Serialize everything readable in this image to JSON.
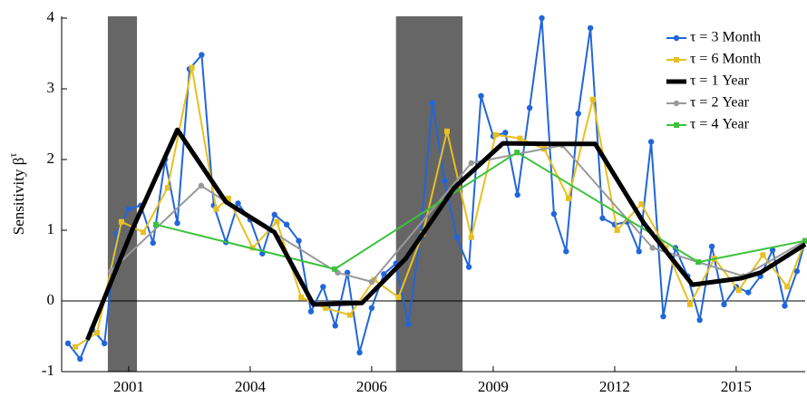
{
  "chart_data": {
    "type": "line",
    "ylabel": "Sensitivity β",
    "ylabel_superscript": "τ",
    "xlim": [
      1999.62,
      2014.92
    ],
    "ylim": [
      -1,
      4
    ],
    "xticks": [
      {
        "value": 2001,
        "label": "2001"
      },
      {
        "value": 2003.5,
        "label": "2004"
      },
      {
        "value": 2006,
        "label": "2006"
      },
      {
        "value": 2008.5,
        "label": "2009"
      },
      {
        "value": 2011,
        "label": "2012"
      },
      {
        "value": 2013.5,
        "label": "2015"
      }
    ],
    "yticks": [
      -1,
      0,
      1,
      2,
      3,
      4
    ],
    "shaded_regions": [
      [
        2000.57,
        2001.17
      ],
      [
        2006.5,
        2007.87
      ]
    ],
    "shade_color": "#666666",
    "zero_line": true,
    "legend": "upper right",
    "series": [
      {
        "name": "τ = 3 Month",
        "color": "#2166d9",
        "marker": "circle",
        "x": [
          1999.75,
          2000,
          2000.25,
          2000.5,
          2000.75,
          2001,
          2001.25,
          2001.5,
          2001.75,
          2002,
          2002.25,
          2002.5,
          2002.75,
          2003,
          2003.25,
          2003.5,
          2003.75,
          2004,
          2004.25,
          2004.5,
          2004.75,
          2005,
          2005.25,
          2005.5,
          2005.75,
          2006,
          2006.25,
          2006.5,
          2006.75,
          2007,
          2007.25,
          2007.5,
          2007.75,
          2008,
          2008.25,
          2008.5,
          2008.75,
          2009,
          2009.25,
          2009.5,
          2009.75,
          2010,
          2010.25,
          2010.5,
          2010.75,
          2011,
          2011.25,
          2011.5,
          2011.75,
          2012,
          2012.25,
          2012.5,
          2012.75,
          2013,
          2013.25,
          2013.5,
          2013.75,
          2014,
          2014.25,
          2014.5,
          2014.75,
          2014.92
        ],
        "values": [
          -0.6,
          -0.82,
          -0.4,
          -0.6,
          0.95,
          1.3,
          1.35,
          0.82,
          2.0,
          1.1,
          3.28,
          3.48,
          1.35,
          0.83,
          1.38,
          1.15,
          0.67,
          1.22,
          1.08,
          0.85,
          -0.15,
          0.2,
          -0.35,
          0.4,
          -0.73,
          -0.1,
          0.38,
          0.53,
          -0.33,
          0.9,
          2.8,
          1.7,
          0.9,
          0.48,
          2.9,
          2.33,
          2.38,
          1.5,
          2.73,
          4.0,
          1.23,
          0.7,
          2.65,
          3.86,
          1.17,
          1.08,
          1.12,
          0.7,
          2.25,
          -0.22,
          0.75,
          0.35,
          -0.27,
          0.77,
          -0.05,
          0.2,
          0.12,
          0.35,
          0.72,
          -0.07,
          0.42,
          0.85
        ]
      },
      {
        "name": "τ = 6 Month",
        "color": "#e8c020",
        "marker": "square",
        "x": [
          1999.9,
          2000.35,
          2000.85,
          2001.3,
          2001.8,
          2002.3,
          2002.8,
          2003.05,
          2003.55,
          2004.05,
          2004.55,
          2005.05,
          2005.55,
          2006.05,
          2006.55,
          2007.05,
          2007.55,
          2008.05,
          2008.55,
          2009.05,
          2009.55,
          2010.05,
          2010.55,
          2011.05,
          2011.55,
          2012.05,
          2012.55,
          2013.05,
          2013.55,
          2014.05,
          2014.55,
          2014.92
        ],
        "values": [
          -0.65,
          -0.45,
          1.12,
          0.97,
          1.6,
          3.3,
          1.3,
          1.45,
          0.75,
          1.12,
          0.05,
          -0.1,
          -0.2,
          0.3,
          0.05,
          0.95,
          2.4,
          0.9,
          2.35,
          2.3,
          2.15,
          1.45,
          2.85,
          1.0,
          1.37,
          0.75,
          -0.05,
          0.6,
          0.15,
          0.65,
          0.2,
          0.85
        ]
      },
      {
        "name": "τ = 1 Year",
        "color": "#000000",
        "marker": "none",
        "x": [
          2000.15,
          2001.1,
          2002,
          2003,
          2004,
          2004.8,
          2005.8,
          2006.7,
          2007.7,
          2008.7,
          2009.7,
          2010.6,
          2011.6,
          2012.6,
          2013.6,
          2014,
          2014.92
        ],
        "values": [
          -0.55,
          1.05,
          2.42,
          1.4,
          0.97,
          -0.05,
          -0.03,
          0.6,
          1.6,
          2.23,
          2.22,
          2.22,
          1.1,
          0.23,
          0.32,
          0.4,
          0.8
        ]
      },
      {
        "name": "τ = 2 Year",
        "color": "#999999",
        "marker": "circle",
        "x": [
          2000.63,
          2002.49,
          2003.9,
          2005.3,
          2006,
          2008.05,
          2009.92,
          2011.78,
          2013.65,
          2014.92
        ],
        "values": [
          0.42,
          1.63,
          1.0,
          0.4,
          0.27,
          1.95,
          2.2,
          0.75,
          0.35,
          0.85
        ]
      },
      {
        "name": "τ = 4 Year",
        "color": "#3cc23c",
        "marker": "square",
        "x": [
          2001.56,
          2005.24,
          2008.99,
          2012.72,
          2014.92
        ],
        "values": [
          1.08,
          0.45,
          2.1,
          0.55,
          0.85
        ]
      }
    ]
  }
}
